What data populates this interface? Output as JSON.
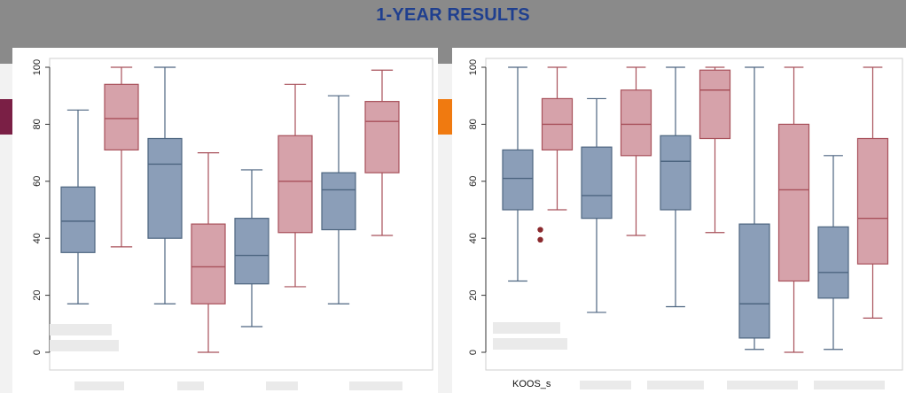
{
  "slide": {
    "title": "1-YEAR RESULTS"
  },
  "colors": {
    "blue_box": "#8b9eb8",
    "blue_stroke": "#4d6580",
    "red_box": "#d6a2aa",
    "red_stroke": "#a8505a",
    "outlier": "#8b2a2e"
  },
  "chart_data": [
    {
      "type": "box",
      "ylim": [
        0,
        100
      ],
      "yticks": [
        "0",
        "20",
        "40",
        "60",
        "80",
        "100"
      ],
      "grid": false,
      "boxes": [
        {
          "color": "blue",
          "min": 17,
          "q1": 35,
          "median": 46,
          "q3": 58,
          "max": 85
        },
        {
          "color": "red",
          "min": 37,
          "q1": 71,
          "median": 82,
          "q3": 94,
          "max": 100
        },
        {
          "color": "blue",
          "min": 17,
          "q1": 40,
          "median": 66,
          "q3": 75,
          "max": 100
        },
        {
          "color": "red",
          "min": 0,
          "q1": 17,
          "median": 30,
          "q3": 45,
          "max": 70
        },
        {
          "color": "blue",
          "min": 9,
          "q1": 24,
          "median": 34,
          "q3": 47,
          "max": 64
        },
        {
          "color": "red",
          "min": 23,
          "q1": 42,
          "median": 60,
          "q3": 76,
          "max": 94
        },
        {
          "color": "blue",
          "min": 17,
          "q1": 43,
          "median": 57,
          "q3": 63,
          "max": 90
        },
        {
          "color": "red",
          "min": 41,
          "q1": 63,
          "median": 81,
          "q3": 88,
          "max": 99
        }
      ]
    },
    {
      "type": "box",
      "ylim": [
        0,
        100
      ],
      "yticks": [
        "0",
        "20",
        "40",
        "60",
        "80",
        "100"
      ],
      "grid": false,
      "xlabel_visible": "KOOS_s",
      "boxes": [
        {
          "color": "blue",
          "min": 25,
          "q1": 50,
          "median": 61,
          "q3": 71,
          "max": 100
        },
        {
          "color": "red",
          "min": 50,
          "q1": 71,
          "median": 80,
          "q3": 89,
          "max": 100,
          "outliers": [
            43,
            39.5
          ]
        },
        {
          "color": "blue",
          "min": 14,
          "q1": 47,
          "median": 55,
          "q3": 72,
          "max": 89
        },
        {
          "color": "red",
          "min": 41,
          "q1": 69,
          "median": 80,
          "q3": 92,
          "max": 100
        },
        {
          "color": "blue",
          "min": 16,
          "q1": 50,
          "median": 67,
          "q3": 76,
          "max": 100
        },
        {
          "color": "red",
          "min": 42,
          "q1": 75,
          "median": 92,
          "q3": 99,
          "max": 100
        },
        {
          "color": "blue",
          "min": 1,
          "q1": 5,
          "median": 17,
          "q3": 45,
          "max": 100
        },
        {
          "color": "red",
          "min": 0,
          "q1": 25,
          "median": 57,
          "q3": 80,
          "max": 100
        },
        {
          "color": "blue",
          "min": 1,
          "q1": 19,
          "median": 28,
          "q3": 44,
          "max": 69
        },
        {
          "color": "red",
          "min": 12,
          "q1": 31,
          "median": 47,
          "q3": 75,
          "max": 100
        }
      ]
    }
  ]
}
